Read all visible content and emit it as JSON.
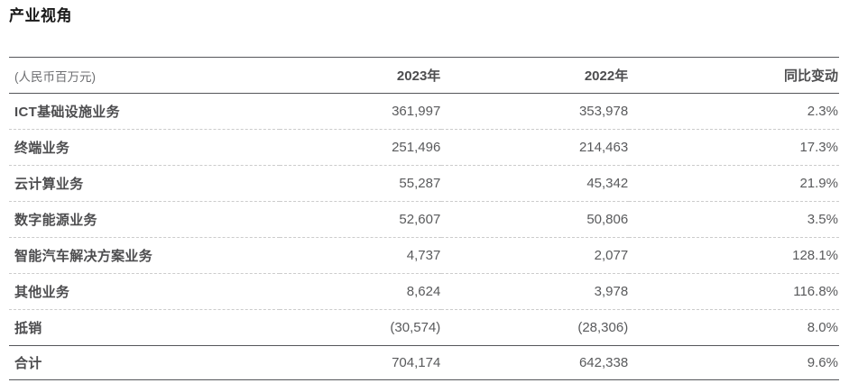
{
  "page_title": "产业视角",
  "table": {
    "unit_label": "(人民币百万元)",
    "columns": [
      "2023年",
      "2022年",
      "同比变动"
    ],
    "rows": [
      {
        "label": "ICT基础设施业务",
        "y2023": "361,997",
        "y2022": "353,978",
        "yoy": "2.3%"
      },
      {
        "label": "终端业务",
        "y2023": "251,496",
        "y2022": "214,463",
        "yoy": "17.3%"
      },
      {
        "label": "云计算业务",
        "y2023": "55,287",
        "y2022": "45,342",
        "yoy": "21.9%"
      },
      {
        "label": "数字能源业务",
        "y2023": "52,607",
        "y2022": "50,806",
        "yoy": "3.5%"
      },
      {
        "label": "智能汽车解决方案业务",
        "y2023": "4,737",
        "y2022": "2,077",
        "yoy": "128.1%"
      },
      {
        "label": "其他业务",
        "y2023": "8,624",
        "y2022": "3,978",
        "yoy": "116.8%"
      },
      {
        "label": "抵销",
        "y2023": "(30,574)",
        "y2022": "(28,306)",
        "yoy": "8.0%"
      }
    ],
    "total_row": {
      "label": "合计",
      "y2023": "704,174",
      "y2022": "642,338",
      "yoy": "9.6%"
    },
    "colors": {
      "title_text": "#1a1a1a",
      "label_text": "#4d4d4f",
      "value_text": "#595a5c",
      "unit_text": "#6d6e71",
      "solid_border": "#55565a",
      "dashed_border": "#cccccc",
      "background": "#ffffff"
    }
  }
}
